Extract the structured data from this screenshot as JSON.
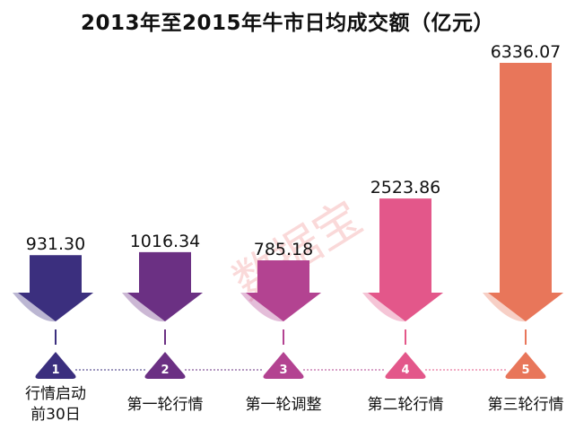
{
  "chart_data": {
    "type": "bar",
    "title": "2013年至2015年牛市日均成交额（亿元）",
    "categories": [
      "行情启动\n前30日",
      "第一轮行情",
      "第一轮调整",
      "第二轮行情",
      "第三轮行情"
    ],
    "values": [
      931.3,
      1016.34,
      785.18,
      2523.86,
      6336.07
    ],
    "value_labels": [
      "931.30",
      "1016.34",
      "785.18",
      "2523.86",
      "6336.07"
    ],
    "step_numbers": [
      "1",
      "2",
      "3",
      "4",
      "5"
    ],
    "colors": [
      "#3b2f7e",
      "#6b3083",
      "#b34391",
      "#e3578a",
      "#e8765a"
    ],
    "grid": false,
    "legend": "none",
    "watermark": "数据宝"
  }
}
